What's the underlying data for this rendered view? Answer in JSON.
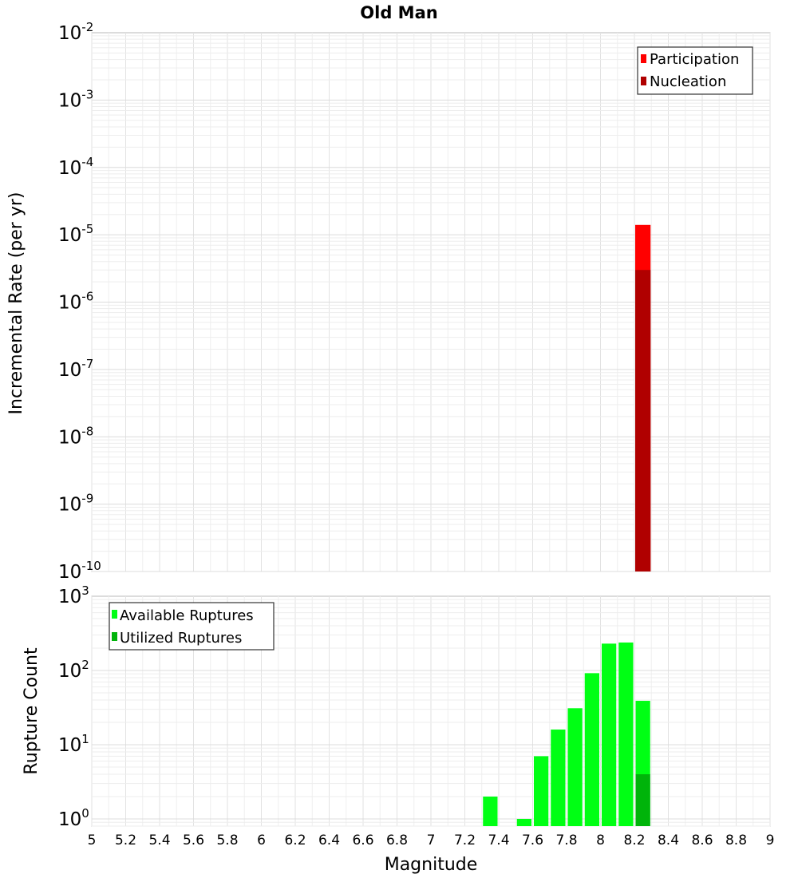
{
  "chart_data": [
    {
      "type": "bar",
      "title": "Old Man",
      "xlabel": "",
      "ylabel": "Incremental Rate (per yr)",
      "yscale": "log",
      "ylim": [
        1e-10,
        0.01
      ],
      "y_tick_exponents": [
        "-2",
        "-3",
        "-4",
        "-5",
        "-6",
        "-7",
        "-8",
        "-9",
        "-10"
      ],
      "xlim": [
        5,
        9
      ],
      "legend": {
        "placement": "top-right"
      },
      "grid": true,
      "series": [
        {
          "name": "Participation",
          "color": "#ff0000",
          "points": [
            {
              "x": 8.25,
              "y": 1.4e-05
            }
          ]
        },
        {
          "name": "Nucleation",
          "color": "#b00000",
          "points": [
            {
              "x": 8.25,
              "y": 3e-06
            }
          ]
        }
      ]
    },
    {
      "type": "bar",
      "title": "",
      "xlabel": "Magnitude",
      "ylabel": "Rupture Count",
      "yscale": "log",
      "ylim": [
        0.8,
        1000
      ],
      "y_tick_exponents": [
        "3",
        "2",
        "1",
        "0"
      ],
      "xlim": [
        5,
        9
      ],
      "x_ticks": [
        "5",
        "5.2",
        "5.4",
        "5.6",
        "5.8",
        "6",
        "6.2",
        "6.4",
        "6.6",
        "6.8",
        "7",
        "7.2",
        "7.4",
        "7.6",
        "7.8",
        "8",
        "8.2",
        "8.4",
        "8.6",
        "8.8",
        "9"
      ],
      "legend": {
        "placement": "top-left"
      },
      "grid": true,
      "series": [
        {
          "name": "Available Ruptures",
          "color": "#00ff14",
          "points": [
            {
              "x": 7.35,
              "y": 2
            },
            {
              "x": 7.55,
              "y": 1
            },
            {
              "x": 7.65,
              "y": 7
            },
            {
              "x": 7.75,
              "y": 16
            },
            {
              "x": 7.85,
              "y": 31
            },
            {
              "x": 7.95,
              "y": 92
            },
            {
              "x": 8.05,
              "y": 230
            },
            {
              "x": 8.15,
              "y": 238
            },
            {
              "x": 8.25,
              "y": 39
            }
          ]
        },
        {
          "name": "Utilized Ruptures",
          "color": "#00b40a",
          "points": [
            {
              "x": 8.25,
              "y": 4
            }
          ]
        }
      ]
    }
  ]
}
